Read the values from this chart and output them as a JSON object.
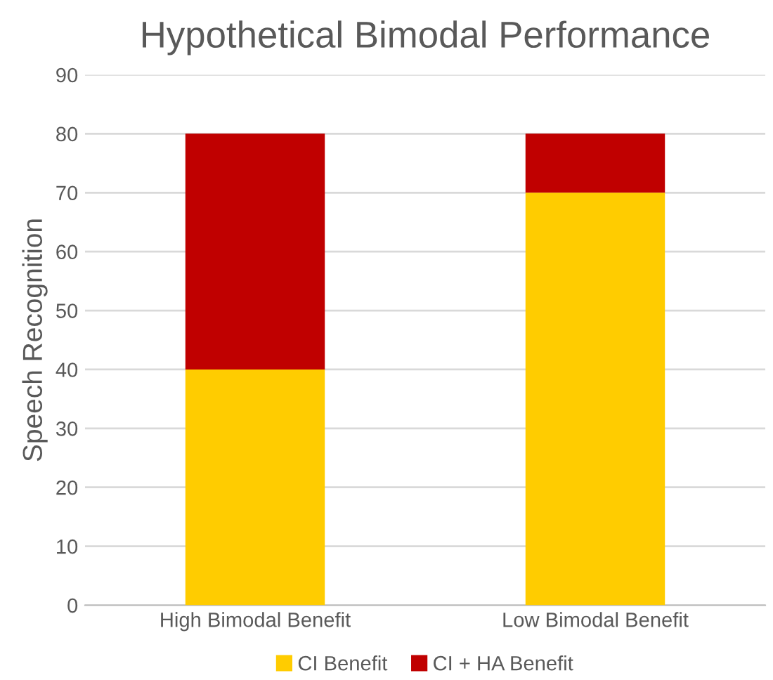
{
  "chart_data": {
    "type": "bar",
    "title": "Hypothetical Bimodal Performance",
    "ylabel": "Speech Recognition",
    "categories": [
      "High Bimodal Benefit",
      "Low Bimodal Benefit"
    ],
    "stacked": true,
    "series": [
      {
        "name": "CI Benefit",
        "color": "#ffcc00",
        "values": [
          40,
          70
        ]
      },
      {
        "name": "CI + HA Benefit",
        "color": "#c00000",
        "values": [
          40,
          10
        ]
      }
    ],
    "ylim": [
      0,
      90
    ],
    "yticks": [
      0,
      10,
      20,
      30,
      40,
      50,
      60,
      70,
      80,
      90
    ],
    "grid": "y",
    "legend": "bottom"
  }
}
